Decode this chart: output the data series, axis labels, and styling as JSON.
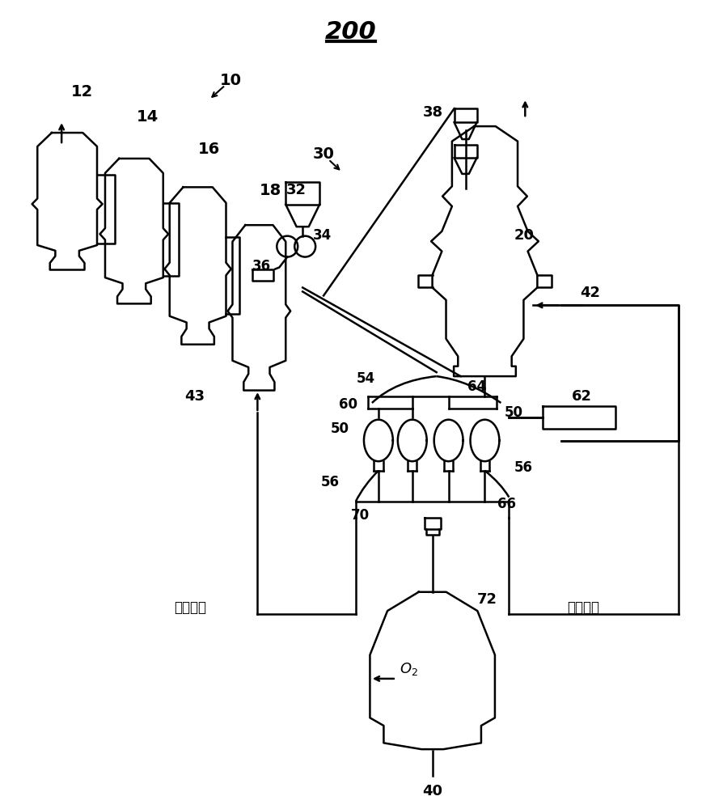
{
  "bg_color": "#ffffff",
  "line_color": "#000000",
  "title": "200"
}
